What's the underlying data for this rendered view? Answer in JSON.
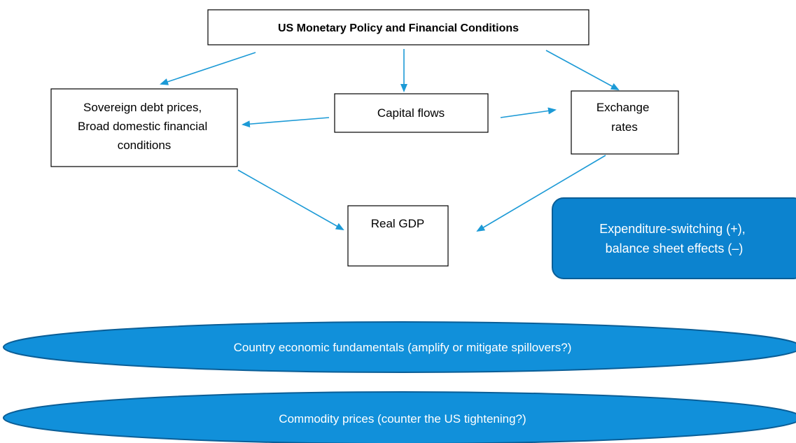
{
  "title": "US Monetary Policy and Financial Conditions",
  "nodes": [
    {
      "lines": [
        "Sovereign debt prices,",
        "Broad domestic financial",
        "conditions"
      ]
    },
    {
      "lines": [
        "Capital flows"
      ]
    },
    {
      "lines": [
        "Exchange",
        "rates"
      ]
    },
    {
      "lines": [
        "Real GDP"
      ]
    }
  ],
  "callout": {
    "lines": [
      "Expenditure-switching (+),",
      "balance sheet effects (–)"
    ]
  },
  "bands": [
    "Country economic fundamentals (amplify or mitigate spillovers?)",
    "Commodity prices (counter the US tightening?)"
  ]
}
